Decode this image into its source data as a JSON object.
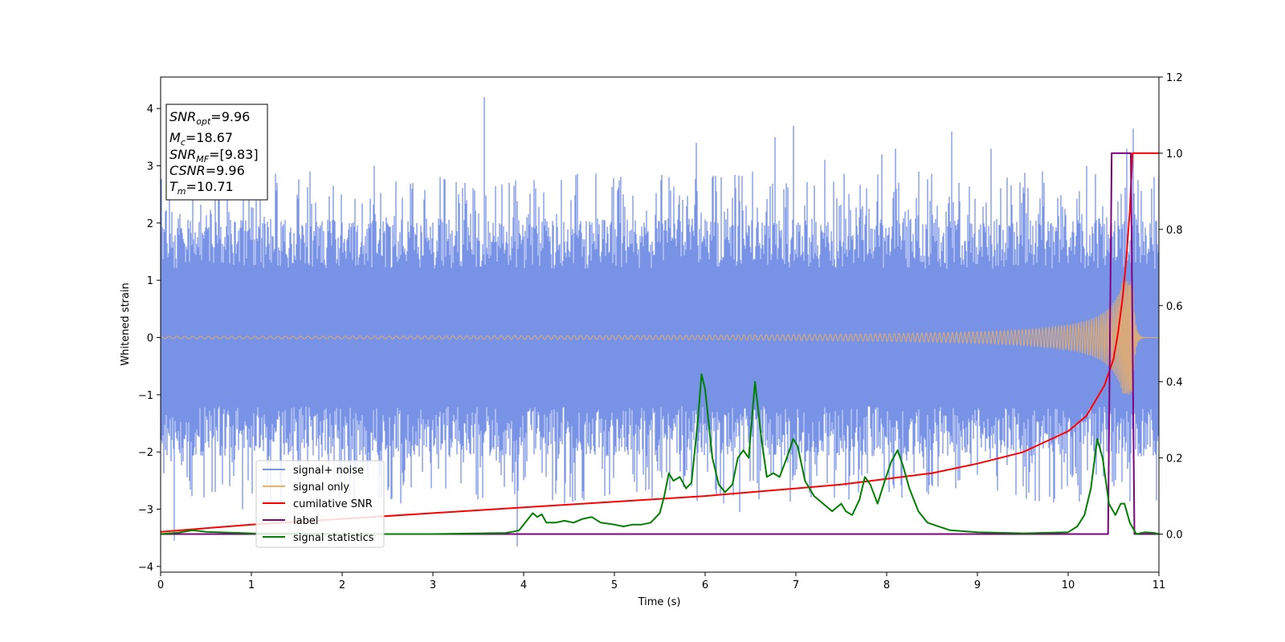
{
  "chart_data": {
    "type": "line",
    "xlabel": "Time (s)",
    "ylabel": "Whitened strain",
    "xlim": [
      0,
      11
    ],
    "ylim": [
      -4.1,
      4.55
    ],
    "y2lim": [
      -0.1,
      1.2
    ],
    "xticks": [
      "0",
      "1",
      "2",
      "3",
      "4",
      "5",
      "6",
      "7",
      "8",
      "9",
      "10",
      "11"
    ],
    "yticks": [
      "−4",
      "−3",
      "−2",
      "−1",
      "0",
      "1",
      "2",
      "3",
      "4"
    ],
    "y2ticks": [
      "0.0",
      "0.2",
      "0.4",
      "0.6",
      "0.8",
      "1.0",
      "1.2"
    ],
    "legend_position": "lower-left",
    "info_box": {
      "snr_opt": {
        "name": "SNR",
        "sub": "opt",
        "value": "=9.96"
      },
      "mc": {
        "name": "M",
        "sub": "c",
        "value": "=18.67"
      },
      "snr_mf": {
        "name": "SNR",
        "sub": "MF",
        "value": "=[9.83]"
      },
      "csnr": {
        "name": "CSNR",
        "value": "=9.96"
      },
      "tm": {
        "name": "T",
        "sub": "m",
        "value": "=10.71"
      }
    },
    "series": [
      {
        "name": "signal+ noise",
        "color": "#7893e6",
        "axis": "left",
        "kind": "noise_band",
        "envelope": 1.6,
        "spikes_high": [
          [
            0.05,
            2.2
          ],
          [
            0.35,
            2.5
          ],
          [
            0.6,
            2.6
          ],
          [
            1.05,
            2.6
          ],
          [
            1.28,
            2.7
          ],
          [
            1.65,
            2.9
          ],
          [
            2.35,
            3.0
          ],
          [
            2.78,
            2.7
          ],
          [
            3.35,
            2.7
          ],
          [
            3.57,
            4.2
          ],
          [
            4.52,
            2.4
          ],
          [
            5.1,
            2.5
          ],
          [
            5.6,
            2.8
          ],
          [
            5.9,
            3.4
          ],
          [
            6.18,
            2.8
          ],
          [
            6.52,
            2.9
          ],
          [
            6.77,
            3.5
          ],
          [
            6.97,
            3.7
          ],
          [
            7.32,
            3.1
          ],
          [
            7.48,
            2.3
          ],
          [
            7.95,
            3.2
          ],
          [
            8.1,
            3.3
          ],
          [
            8.35,
            2.9
          ],
          [
            8.72,
            3.6
          ],
          [
            9.15,
            3.3
          ],
          [
            9.72,
            2.9
          ],
          [
            10.2,
            3.0
          ],
          [
            10.65,
            3.3
          ],
          [
            10.72,
            3.65
          ],
          [
            10.92,
            2.6
          ]
        ],
        "spikes_low": [
          [
            0.15,
            -3.55
          ],
          [
            0.6,
            -2.7
          ],
          [
            0.9,
            -3.0
          ],
          [
            1.33,
            -2.9
          ],
          [
            1.97,
            -2.8
          ],
          [
            2.65,
            -2.9
          ],
          [
            3.55,
            -2.8
          ],
          [
            3.93,
            -3.65
          ],
          [
            4.45,
            -2.9
          ],
          [
            5.25,
            -2.7
          ],
          [
            5.85,
            -2.6
          ],
          [
            6.2,
            -2.9
          ],
          [
            6.38,
            -3.05
          ],
          [
            6.53,
            -2.5
          ],
          [
            7.1,
            -2.5
          ],
          [
            7.55,
            -2.6
          ],
          [
            8.03,
            -2.7
          ],
          [
            8.5,
            -2.6
          ],
          [
            9.0,
            -2.4
          ],
          [
            9.5,
            -2.6
          ],
          [
            10.5,
            -2.6
          ],
          [
            10.97,
            -2.85
          ]
        ]
      },
      {
        "name": "signal only",
        "color": "#f0b060",
        "axis": "left",
        "kind": "chirp",
        "t_merge": 10.71,
        "peak_amplitude": 1.0,
        "base_amplitude": 0.02
      },
      {
        "name": "cumilative SNR",
        "color": "#ff0000",
        "axis": "right",
        "x": [
          0,
          1,
          2,
          3,
          4,
          5,
          6,
          7,
          7.5,
          8,
          8.5,
          9,
          9.5,
          10,
          10.2,
          10.4,
          10.5,
          10.55,
          10.6,
          10.64,
          10.68,
          10.71,
          11
        ],
        "y": [
          0.006,
          0.025,
          0.04,
          0.055,
          0.07,
          0.085,
          0.1,
          0.12,
          0.13,
          0.145,
          0.16,
          0.185,
          0.215,
          0.27,
          0.31,
          0.39,
          0.46,
          0.53,
          0.62,
          0.72,
          0.85,
          1.0,
          1.0
        ]
      },
      {
        "name": "label",
        "color": "#800080",
        "axis": "right",
        "x": [
          0,
          10.44,
          10.48,
          10.69,
          10.73,
          11
        ],
        "y": [
          0,
          0,
          1,
          1,
          0,
          0
        ]
      },
      {
        "name": "signal statistics",
        "color": "#008000",
        "axis": "right",
        "x": [
          0,
          0.2,
          0.35,
          0.5,
          1.0,
          2.0,
          3.0,
          3.8,
          3.9,
          3.95,
          4.05,
          4.1,
          4.15,
          4.2,
          4.25,
          4.35,
          4.45,
          4.55,
          4.65,
          4.75,
          4.85,
          5.0,
          5.1,
          5.2,
          5.3,
          5.4,
          5.5,
          5.55,
          5.6,
          5.65,
          5.72,
          5.79,
          5.85,
          5.92,
          5.96,
          6.0,
          6.08,
          6.15,
          6.22,
          6.3,
          6.36,
          6.42,
          6.48,
          6.55,
          6.62,
          6.68,
          6.75,
          6.82,
          6.9,
          6.97,
          7.02,
          7.1,
          7.2,
          7.3,
          7.4,
          7.45,
          7.5,
          7.55,
          7.62,
          7.7,
          7.76,
          7.82,
          7.9,
          7.98,
          8.05,
          8.12,
          8.18,
          8.25,
          8.35,
          8.45,
          8.7,
          9.0,
          9.5,
          10.0,
          10.1,
          10.18,
          10.25,
          10.32,
          10.38,
          10.45,
          10.52,
          10.58,
          10.62,
          10.68,
          10.75,
          10.85,
          10.95,
          11.0
        ],
        "y": [
          0,
          0.004,
          0.01,
          0.006,
          0.002,
          0.0,
          0.0,
          0.003,
          0.007,
          0.01,
          0.04,
          0.055,
          0.045,
          0.052,
          0.03,
          0.03,
          0.035,
          0.03,
          0.04,
          0.045,
          0.03,
          0.025,
          0.02,
          0.025,
          0.025,
          0.03,
          0.055,
          0.1,
          0.16,
          0.14,
          0.15,
          0.12,
          0.135,
          0.3,
          0.42,
          0.38,
          0.2,
          0.13,
          0.11,
          0.13,
          0.2,
          0.22,
          0.2,
          0.4,
          0.25,
          0.15,
          0.16,
          0.15,
          0.2,
          0.25,
          0.23,
          0.14,
          0.1,
          0.08,
          0.06,
          0.07,
          0.08,
          0.06,
          0.05,
          0.09,
          0.15,
          0.13,
          0.08,
          0.14,
          0.19,
          0.22,
          0.18,
          0.12,
          0.06,
          0.03,
          0.01,
          0.005,
          0.002,
          0.005,
          0.02,
          0.05,
          0.12,
          0.25,
          0.2,
          0.08,
          0.05,
          0.08,
          0.08,
          0.03,
          0.0,
          0.005,
          0.003,
          0.0
        ]
      }
    ]
  }
}
